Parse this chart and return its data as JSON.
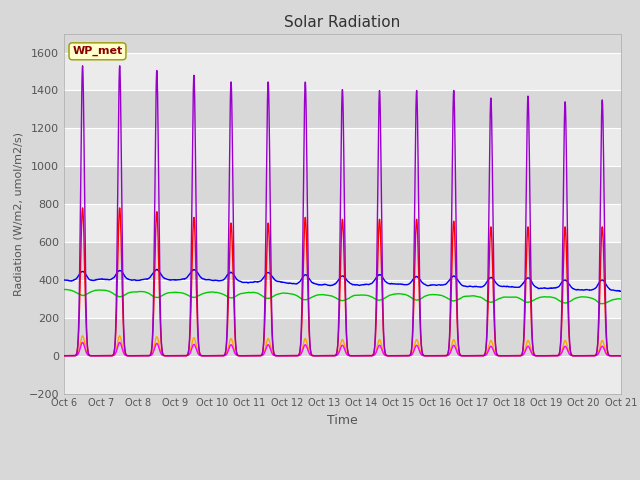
{
  "title": "Solar Radiation",
  "xlabel": "Time",
  "ylabel": "Radiation (W/m2, umol/m2/s)",
  "ylim": [
    -200,
    1700
  ],
  "yticks": [
    -200,
    0,
    200,
    400,
    600,
    800,
    1000,
    1200,
    1400,
    1600
  ],
  "n_days": 15,
  "pts_per_day": 288,
  "series_colors": {
    "Shortwave In": "#ff0000",
    "Shortwave Out": "#ffa500",
    "Longwave In": "#00cc00",
    "Longwave Out": "#0000ff",
    "PAR in": "#9900cc",
    "PAR out": "#ff00ff"
  },
  "station_label": "WP_met",
  "fig_bg_color": "#d8d8d8",
  "plot_bg_color": "#d8d8d8",
  "grid_color": "#ffffff",
  "tick_label_color": "#555555",
  "title_color": "#333333",
  "par_in_peaks": [
    1530,
    1530,
    1505,
    1480,
    1445,
    1445,
    1445,
    1405,
    1400,
    1400,
    1400,
    1360,
    1370,
    1340,
    1350
  ],
  "sw_in_peaks": [
    780,
    780,
    760,
    730,
    700,
    700,
    730,
    720,
    720,
    720,
    710,
    680,
    680,
    680,
    680
  ],
  "sw_out_peaks": [
    105,
    105,
    100,
    95,
    90,
    90,
    90,
    85,
    85,
    85,
    85,
    80,
    80,
    80,
    80
  ],
  "par_out_peaks": [
    70,
    70,
    65,
    60,
    58,
    58,
    58,
    55,
    55,
    55,
    55,
    50,
    50,
    50,
    50
  ]
}
